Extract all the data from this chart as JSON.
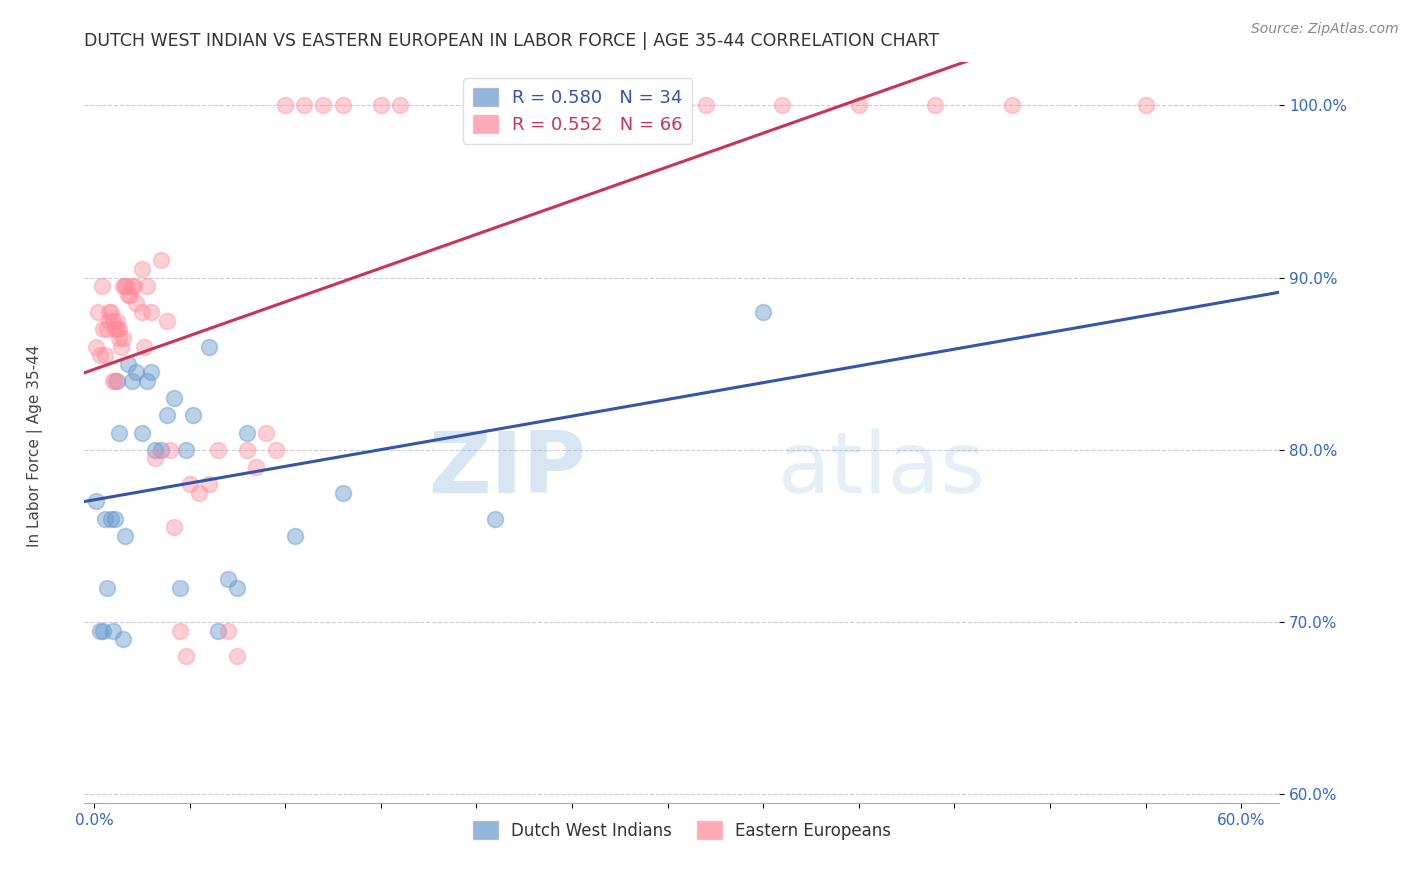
{
  "title": "DUTCH WEST INDIAN VS EASTERN EUROPEAN IN LABOR FORCE | AGE 35-44 CORRELATION CHART",
  "source": "Source: ZipAtlas.com",
  "ylabel": "In Labor Force | Age 35-44",
  "watermark_zip": "ZIP",
  "watermark_atlas": "atlas",
  "xlim": [
    -0.005,
    0.62
  ],
  "ylim": [
    0.595,
    1.025
  ],
  "yticks": [
    0.6,
    0.7,
    0.8,
    0.9,
    1.0
  ],
  "ytick_labels": [
    "60.0%",
    "70.0%",
    "80.0%",
    "90.0%",
    "100.0%"
  ],
  "xtick_labels": [
    "0.0%",
    "",
    "",
    "",
    "",
    "",
    "",
    "",
    "",
    "",
    "",
    "",
    "60.0%"
  ],
  "blue_R": 0.58,
  "blue_N": 34,
  "pink_R": 0.552,
  "pink_N": 66,
  "blue_color": "#6699CC",
  "pink_color": "#FF8899",
  "blue_line_color": "#3355AA",
  "pink_line_color": "#CC3355",
  "blue_label": "Dutch West Indians",
  "pink_label": "Eastern Europeans",
  "background_color": "#FFFFFF",
  "grid_color": "#CCCCDD",
  "title_color": "#333333",
  "tick_color": "#3366CC",
  "blue_x": [
    0.001,
    0.003,
    0.005,
    0.006,
    0.007,
    0.009,
    0.01,
    0.011,
    0.012,
    0.013,
    0.015,
    0.016,
    0.018,
    0.02,
    0.022,
    0.025,
    0.028,
    0.03,
    0.032,
    0.035,
    0.038,
    0.042,
    0.045,
    0.048,
    0.052,
    0.06,
    0.065,
    0.07,
    0.075,
    0.08,
    0.105,
    0.13,
    0.21,
    0.35
  ],
  "blue_y": [
    0.77,
    0.695,
    0.695,
    0.76,
    0.72,
    0.76,
    0.695,
    0.76,
    0.84,
    0.81,
    0.69,
    0.75,
    0.85,
    0.84,
    0.845,
    0.81,
    0.84,
    0.845,
    0.8,
    0.8,
    0.82,
    0.83,
    0.72,
    0.8,
    0.82,
    0.86,
    0.695,
    0.725,
    0.72,
    0.81,
    0.75,
    0.775,
    0.76,
    0.88
  ],
  "pink_x": [
    0.001,
    0.002,
    0.003,
    0.004,
    0.005,
    0.006,
    0.007,
    0.008,
    0.008,
    0.009,
    0.01,
    0.01,
    0.011,
    0.011,
    0.012,
    0.012,
    0.013,
    0.013,
    0.014,
    0.015,
    0.015,
    0.016,
    0.017,
    0.018,
    0.019,
    0.02,
    0.021,
    0.022,
    0.025,
    0.025,
    0.026,
    0.028,
    0.03,
    0.032,
    0.035,
    0.038,
    0.04,
    0.042,
    0.045,
    0.048,
    0.05,
    0.055,
    0.06,
    0.065,
    0.07,
    0.075,
    0.08,
    0.085,
    0.09,
    0.095,
    0.1,
    0.11,
    0.12,
    0.13,
    0.15,
    0.16,
    0.21,
    0.22,
    0.24,
    0.28,
    0.32,
    0.36,
    0.4,
    0.44,
    0.48,
    0.55
  ],
  "pink_y": [
    0.86,
    0.88,
    0.855,
    0.895,
    0.87,
    0.855,
    0.87,
    0.875,
    0.88,
    0.88,
    0.84,
    0.875,
    0.84,
    0.87,
    0.875,
    0.87,
    0.87,
    0.865,
    0.86,
    0.895,
    0.865,
    0.895,
    0.895,
    0.89,
    0.89,
    0.895,
    0.895,
    0.885,
    0.88,
    0.905,
    0.86,
    0.895,
    0.88,
    0.795,
    0.91,
    0.875,
    0.8,
    0.755,
    0.695,
    0.68,
    0.78,
    0.775,
    0.78,
    0.8,
    0.695,
    0.68,
    0.8,
    0.79,
    0.81,
    0.8,
    1.0,
    1.0,
    1.0,
    1.0,
    1.0,
    1.0,
    1.0,
    1.0,
    1.0,
    1.0,
    1.0,
    1.0,
    1.0,
    1.0,
    1.0,
    1.0
  ]
}
